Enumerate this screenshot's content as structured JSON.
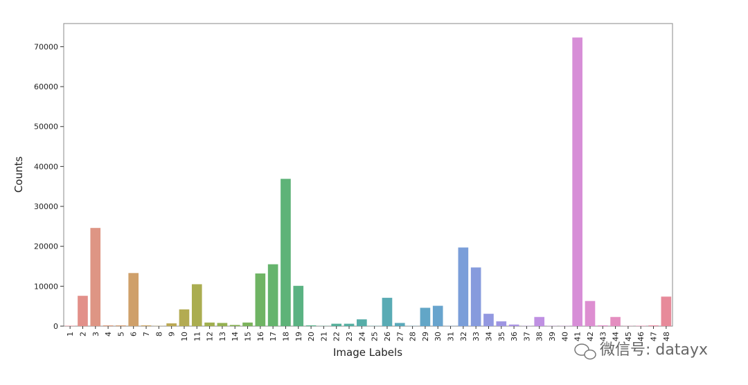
{
  "chart_data": {
    "type": "bar",
    "x_label": "Image Labels",
    "y_label": "Counts",
    "categories": [
      "1",
      "2",
      "3",
      "4",
      "5",
      "6",
      "7",
      "8",
      "9",
      "10",
      "11",
      "12",
      "13",
      "14",
      "15",
      "16",
      "17",
      "18",
      "19",
      "20",
      "21",
      "22",
      "23",
      "24",
      "25",
      "26",
      "27",
      "28",
      "29",
      "30",
      "31",
      "32",
      "33",
      "34",
      "35",
      "36",
      "37",
      "38",
      "39",
      "40",
      "41",
      "42",
      "43",
      "44",
      "45",
      "46",
      "47",
      "48"
    ],
    "values": [
      100,
      7600,
      24600,
      200,
      200,
      13300,
      200,
      50,
      700,
      4200,
      10500,
      900,
      800,
      300,
      900,
      13200,
      15500,
      36900,
      10100,
      200,
      50,
      600,
      600,
      1700,
      50,
      7100,
      800,
      50,
      4600,
      5100,
      50,
      19700,
      14700,
      3100,
      1200,
      400,
      50,
      2300,
      50,
      50,
      72300,
      6300,
      200,
      2300,
      50,
      100,
      200,
      7400
    ],
    "colors": [
      "#e58a93",
      "#e2908a",
      "#de9584",
      "#d99a7d",
      "#d49e74",
      "#cfa06a",
      "#c9a362",
      "#c2a65a",
      "#bba955",
      "#b3ab52",
      "#aaad50",
      "#a0af50",
      "#95b152",
      "#89b256",
      "#7cb35c",
      "#6fb464",
      "#65b46d",
      "#5eb378",
      "#5ab282",
      "#57b18b",
      "#56b093",
      "#55af9a",
      "#55aea1",
      "#56ada8",
      "#57acae",
      "#59abb4",
      "#5ba9ba",
      "#5ea8c0",
      "#62a6c7",
      "#68a4cd",
      "#70a1d3",
      "#7a9ed9",
      "#869bdd",
      "#9298e0",
      "#9e95e2",
      "#aa93e3",
      "#b591e3",
      "#bf90e2",
      "#c88fe0",
      "#d08edc",
      "#d78ed7",
      "#dd8ed1",
      "#e18ec9",
      "#e48ec0",
      "#e68db7",
      "#e78cad",
      "#e78ba3",
      "#e78a9a"
    ],
    "ylim": [
      0,
      75800
    ],
    "yticks": [
      0,
      10000,
      20000,
      30000,
      40000,
      50000,
      60000,
      70000
    ]
  },
  "watermark": "微信号: datayx"
}
